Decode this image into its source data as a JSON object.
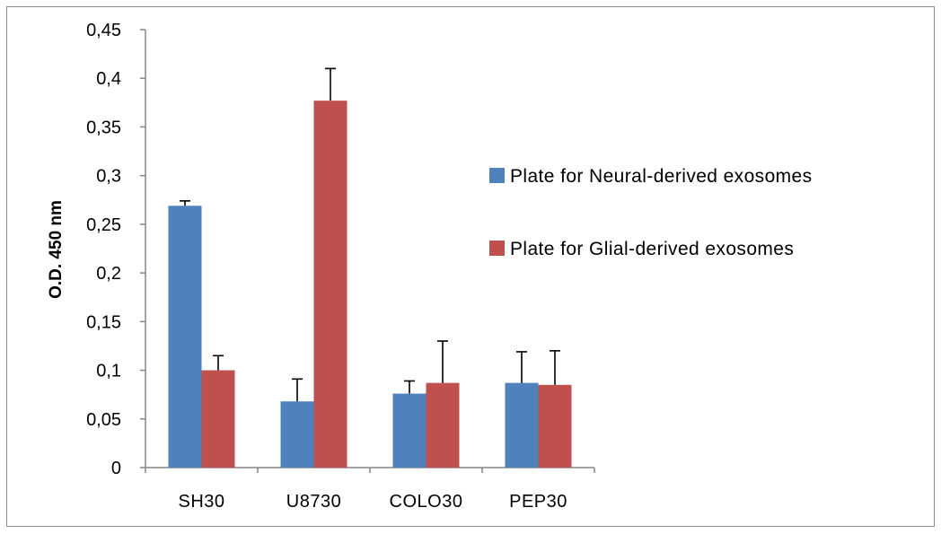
{
  "chart_data": {
    "type": "bar",
    "title": "",
    "xlabel": "",
    "ylabel": "O.D. 450 nm",
    "ylim": [
      0,
      0.45
    ],
    "yticks": [
      0,
      0.05,
      0.1,
      0.15,
      0.2,
      0.25,
      0.3,
      0.35,
      0.4,
      0.45
    ],
    "ytick_labels": [
      "0",
      "0,05",
      "0,1",
      "0,15",
      "0,2",
      "0,25",
      "0,3",
      "0,35",
      "0,4",
      "0,45"
    ],
    "categories": [
      "SH30",
      "U8730",
      "COLO30",
      "PEP30"
    ],
    "series": [
      {
        "name": "Plate for Neural-derived exosomes",
        "color": "#4f81bd",
        "values": [
          0.269,
          0.068,
          0.076,
          0.087
        ],
        "errors": [
          0.005,
          0.023,
          0.013,
          0.032
        ]
      },
      {
        "name": "Plate for Glial-derived exosomes",
        "color": "#c0504d",
        "values": [
          0.1,
          0.377,
          0.087,
          0.085
        ],
        "errors": [
          0.015,
          0.033,
          0.043,
          0.035
        ]
      }
    ],
    "legend_position": "right",
    "grid": false
  }
}
